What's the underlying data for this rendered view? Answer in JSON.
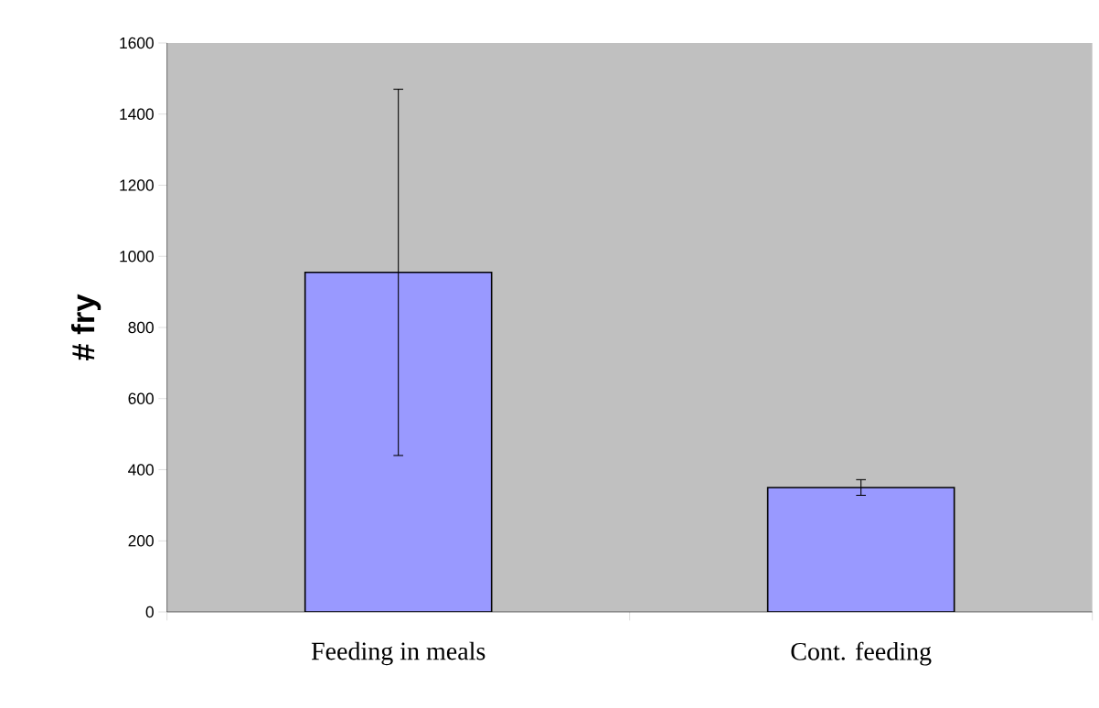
{
  "chart_data": {
    "type": "bar",
    "ylabel": "# fry",
    "categories": [
      "Feeding in meals",
      "Cont. feeding"
    ],
    "values": [
      955,
      350
    ],
    "errors": [
      515,
      22
    ],
    "color": "#9999ff",
    "ylim": [
      0,
      1600
    ],
    "yticks": [
      0,
      200,
      400,
      600,
      800,
      1000,
      1200,
      1400,
      1600
    ],
    "grid": false
  }
}
